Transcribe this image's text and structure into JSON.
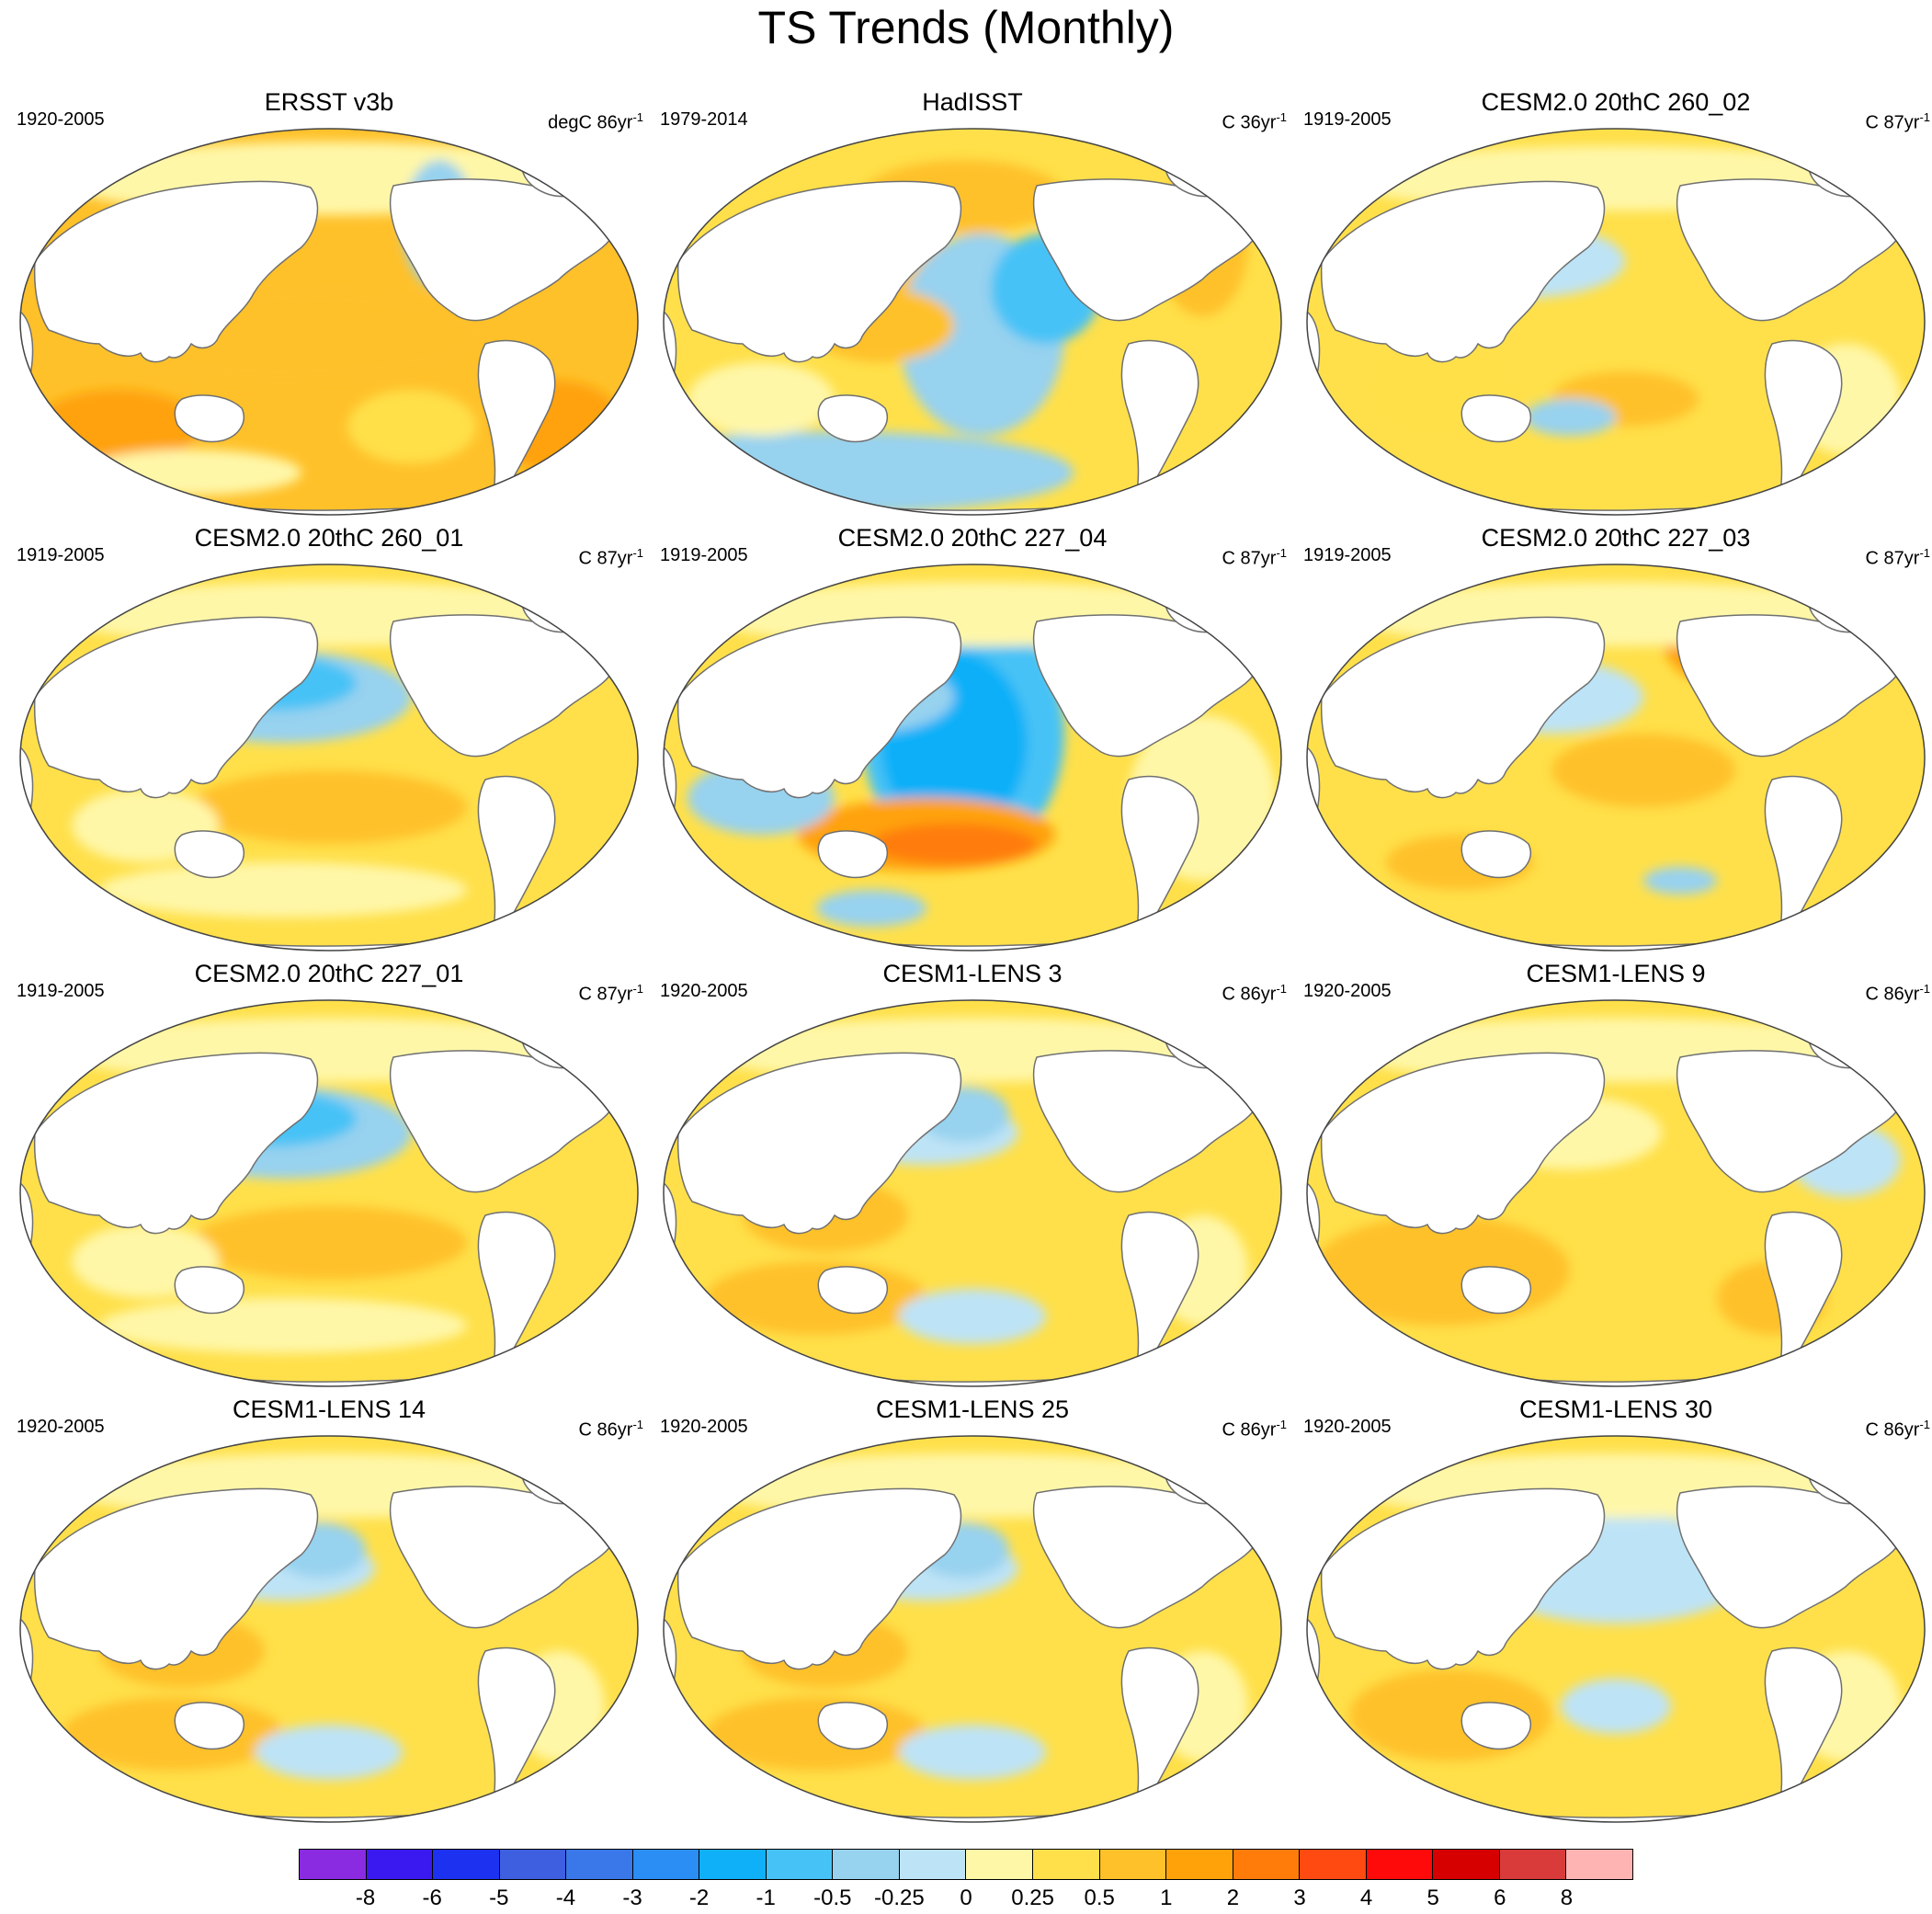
{
  "title": "TS Trends (Monthly)",
  "panels": [
    {
      "title": "ERSST v3b",
      "period": "1920-2005",
      "units": "degC 86yr",
      "pattern": "ersst"
    },
    {
      "title": "HadISST",
      "period": "1979-2014",
      "units": "C 36yr",
      "pattern": "hadisst"
    },
    {
      "title": "CESM2.0 20thC 260_02",
      "period": "1919-2005",
      "units": "C 87yr",
      "pattern": "weak"
    },
    {
      "title": "CESM2.0 20thC 260_01",
      "period": "1919-2005",
      "units": "C 87yr",
      "pattern": "npac_cool"
    },
    {
      "title": "CESM2.0 20thC 227_04",
      "period": "1919-2005",
      "units": "C 87yr",
      "pattern": "strong_pdo"
    },
    {
      "title": "CESM2.0 20thC 227_03",
      "period": "1919-2005",
      "units": "C 87yr",
      "pattern": "weak_warm"
    },
    {
      "title": "CESM2.0 20thC 227_01",
      "period": "1919-2005",
      "units": "C 87yr",
      "pattern": "npac_cool"
    },
    {
      "title": "CESM1-LENS 3",
      "period": "1920-2005",
      "units": "C 86yr",
      "pattern": "lens"
    },
    {
      "title": "CESM1-LENS 9",
      "period": "1920-2005",
      "units": "C 86yr",
      "pattern": "lens_warm"
    },
    {
      "title": "CESM1-LENS 14",
      "period": "1920-2005",
      "units": "C 86yr",
      "pattern": "lens"
    },
    {
      "title": "CESM1-LENS 25",
      "period": "1920-2005",
      "units": "C 86yr",
      "pattern": "lens"
    },
    {
      "title": "CESM1-LENS 30",
      "period": "1920-2005",
      "units": "C 86yr",
      "pattern": "lens_cool"
    }
  ],
  "units_superscript": "-1",
  "colorbar": {
    "labels": [
      "-8",
      "-6",
      "-5",
      "-4",
      "-3",
      "-2",
      "-1",
      "-0.5",
      "-0.25",
      "0",
      "0.25",
      "0.5",
      "1",
      "2",
      "3",
      "4",
      "5",
      "6",
      "8"
    ],
    "colors": [
      "#8a2be2",
      "#3a19f0",
      "#1c32f0",
      "#3d5fe0",
      "#3a78ea",
      "#2a8ef5",
      "#10b0f8",
      "#46c2f6",
      "#97d2ef",
      "#bde3f6",
      "#fff7a8",
      "#ffe04a",
      "#ffc12a",
      "#ffa20a",
      "#ff7c0a",
      "#ff4a12",
      "#ff0a0a",
      "#d60000",
      "#d93a3a",
      "#ffb4b4"
    ]
  }
}
